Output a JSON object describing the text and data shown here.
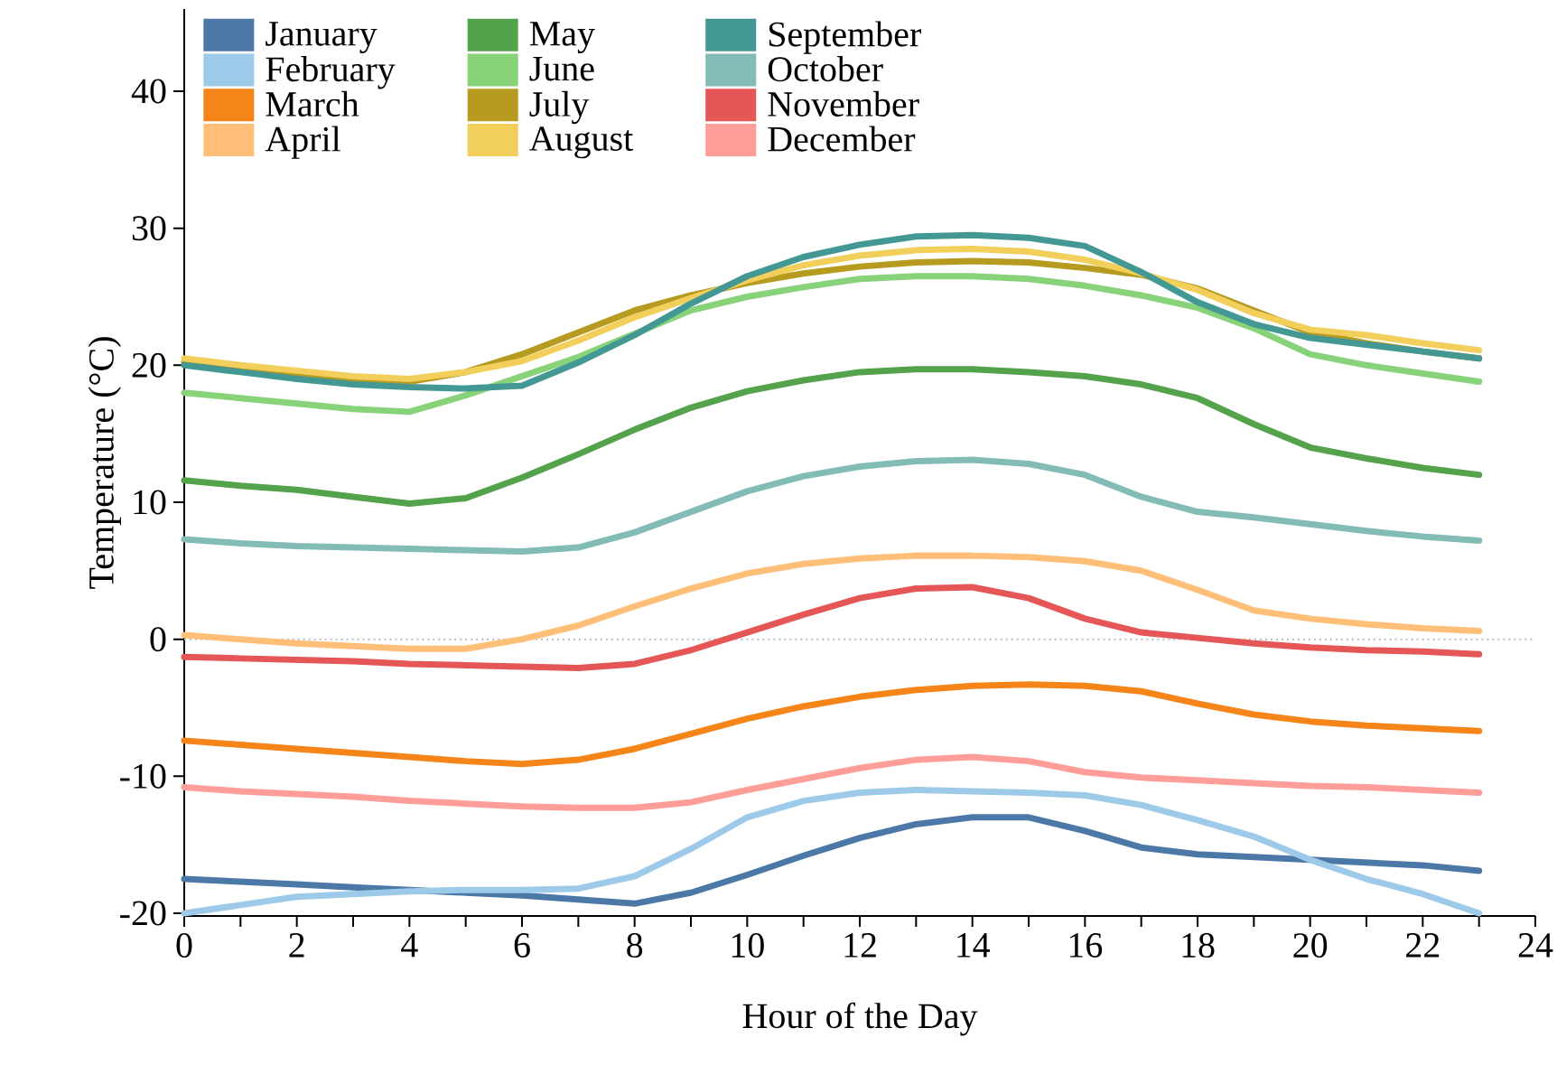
{
  "chart_data": {
    "type": "line",
    "xlabel": "Hour of the Day",
    "ylabel": "Temperature (°C)",
    "x": [
      0,
      1,
      2,
      3,
      4,
      5,
      6,
      7,
      8,
      9,
      10,
      11,
      12,
      13,
      14,
      15,
      16,
      17,
      18,
      19,
      20,
      21,
      22,
      23
    ],
    "xlim": [
      0,
      24
    ],
    "xticks": [
      0,
      {
        "value": 1,
        "label": null
      },
      2,
      {
        "value": 3,
        "label": null
      },
      4,
      {
        "value": 5,
        "label": null
      },
      6,
      {
        "value": 7,
        "label": null
      },
      8,
      {
        "value": 9,
        "label": null
      },
      10,
      {
        "value": 11,
        "label": null
      },
      12,
      {
        "value": 13,
        "label": null
      },
      14,
      {
        "value": 15,
        "label": null
      },
      16,
      {
        "value": 17,
        "label": null
      },
      18,
      {
        "value": 19,
        "label": null
      },
      20,
      {
        "value": 21,
        "label": null
      },
      22,
      {
        "value": 23,
        "label": null
      },
      24
    ],
    "ylim": [
      -20.2,
      46
    ],
    "yticks": [
      -20,
      -10,
      0,
      10,
      20,
      30,
      40
    ],
    "grid": false,
    "legend": "top",
    "ref_lines": [
      {
        "axis": "y",
        "value": 0,
        "color": "#bbbbbb",
        "line_style": "dotted"
      }
    ],
    "series": [
      {
        "name": "January",
        "color": "#4c78a8",
        "values": [
          -17.5,
          -17.7,
          -17.9,
          -18.1,
          -18.3,
          -18.5,
          -18.7,
          -19.0,
          -19.3,
          -18.5,
          -17.2,
          -15.8,
          -14.5,
          -13.5,
          -13.0,
          -13.0,
          -14.0,
          -15.2,
          -15.7,
          -15.9,
          -16.1,
          -16.3,
          -16.5,
          -16.9
        ]
      },
      {
        "name": "February",
        "color": "#9ecae9",
        "values": [
          -20.0,
          -19.4,
          -18.8,
          -18.6,
          -18.4,
          -18.3,
          -18.3,
          -18.2,
          -17.3,
          -15.3,
          -13.0,
          -11.8,
          -11.2,
          -11.0,
          -11.1,
          -11.2,
          -11.4,
          -12.1,
          -13.2,
          -14.4,
          -16.1,
          -17.5,
          -18.6,
          -20.0
        ]
      },
      {
        "name": "March",
        "color": "#f58518",
        "values": [
          -7.4,
          -7.7,
          -8.0,
          -8.3,
          -8.6,
          -8.9,
          -9.1,
          -8.8,
          -8.0,
          -6.9,
          -5.8,
          -4.9,
          -4.2,
          -3.7,
          -3.4,
          -3.3,
          -3.4,
          -3.8,
          -4.7,
          -5.5,
          -6.0,
          -6.3,
          -6.5,
          -6.7
        ]
      },
      {
        "name": "April",
        "color": "#ffbf79",
        "values": [
          0.3,
          0.0,
          -0.3,
          -0.5,
          -0.7,
          -0.7,
          0.0,
          1.0,
          2.4,
          3.7,
          4.8,
          5.5,
          5.9,
          6.1,
          6.1,
          6.0,
          5.7,
          5.0,
          3.6,
          2.1,
          1.5,
          1.1,
          0.8,
          0.6
        ]
      },
      {
        "name": "May",
        "color": "#54a24b",
        "values": [
          11.6,
          11.2,
          10.9,
          10.4,
          9.9,
          10.3,
          11.8,
          13.5,
          15.3,
          16.9,
          18.1,
          18.9,
          19.5,
          19.7,
          19.7,
          19.5,
          19.2,
          18.6,
          17.6,
          15.7,
          14.0,
          13.2,
          12.5,
          12.0
        ]
      },
      {
        "name": "June",
        "color": "#88d27a",
        "values": [
          18.0,
          17.6,
          17.2,
          16.8,
          16.6,
          17.8,
          19.2,
          20.6,
          22.3,
          24.0,
          25.0,
          25.7,
          26.3,
          26.5,
          26.5,
          26.3,
          25.8,
          25.1,
          24.2,
          22.7,
          20.8,
          20.0,
          19.4,
          18.8
        ]
      },
      {
        "name": "July",
        "color": "#b79a20",
        "values": [
          20.2,
          19.8,
          19.4,
          19.0,
          18.8,
          19.5,
          20.8,
          22.4,
          24.0,
          25.1,
          26.0,
          26.7,
          27.2,
          27.5,
          27.6,
          27.5,
          27.1,
          26.6,
          25.6,
          24.0,
          22.4,
          21.6,
          21.0,
          20.5
        ]
      },
      {
        "name": "August",
        "color": "#f2cf5b",
        "values": [
          20.5,
          20.0,
          19.6,
          19.2,
          19.0,
          19.5,
          20.3,
          21.8,
          23.5,
          24.9,
          26.2,
          27.3,
          28.0,
          28.4,
          28.5,
          28.3,
          27.7,
          26.7,
          25.5,
          23.8,
          22.6,
          22.2,
          21.6,
          21.1
        ]
      },
      {
        "name": "September",
        "color": "#439894",
        "values": [
          20.0,
          19.5,
          19.0,
          18.6,
          18.4,
          18.3,
          18.5,
          20.2,
          22.2,
          24.5,
          26.5,
          27.9,
          28.8,
          29.4,
          29.5,
          29.3,
          28.7,
          26.8,
          24.6,
          23.0,
          22.0,
          21.5,
          21.0,
          20.5
        ]
      },
      {
        "name": "October",
        "color": "#83bcb6",
        "values": [
          7.3,
          7.0,
          6.8,
          6.7,
          6.6,
          6.5,
          6.4,
          6.7,
          7.8,
          9.3,
          10.8,
          11.9,
          12.6,
          13.0,
          13.1,
          12.8,
          12.0,
          10.4,
          9.3,
          8.9,
          8.4,
          7.9,
          7.5,
          7.2
        ]
      },
      {
        "name": "November",
        "color": "#e45756",
        "values": [
          -1.3,
          -1.4,
          -1.5,
          -1.6,
          -1.8,
          -1.9,
          -2.0,
          -2.1,
          -1.8,
          -0.8,
          0.5,
          1.8,
          3.0,
          3.7,
          3.8,
          3.0,
          1.5,
          0.5,
          0.1,
          -0.3,
          -0.6,
          -0.8,
          -0.9,
          -1.1
        ]
      },
      {
        "name": "December",
        "color": "#ff9d98",
        "values": [
          -10.8,
          -11.1,
          -11.3,
          -11.5,
          -11.8,
          -12.0,
          -12.2,
          -12.3,
          -12.3,
          -11.9,
          -11.0,
          -10.2,
          -9.4,
          -8.8,
          -8.6,
          -8.9,
          -9.7,
          -10.1,
          -10.3,
          -10.5,
          -10.7,
          -10.8,
          -11.0,
          -11.2
        ]
      }
    ]
  }
}
